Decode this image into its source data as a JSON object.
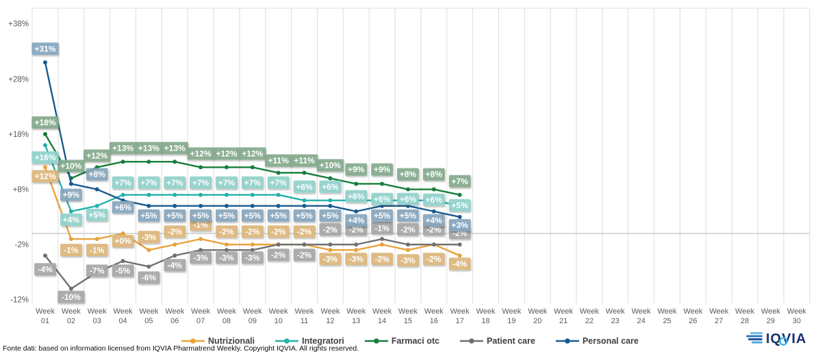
{
  "chart_data": {
    "type": "line",
    "title": "",
    "x_label_prefix": "Week",
    "weeks": [
      "01",
      "02",
      "03",
      "04",
      "05",
      "06",
      "07",
      "08",
      "09",
      "10",
      "11",
      "12",
      "13",
      "14",
      "15",
      "16",
      "17",
      "18",
      "19",
      "20",
      "21",
      "22",
      "23",
      "24",
      "25",
      "26",
      "27",
      "28",
      "29",
      "30"
    ],
    "y_ticks": [
      "+38%",
      "+28%",
      "+18%",
      "+8%",
      "-2%",
      "-12%"
    ],
    "y_tick_values": [
      38,
      28,
      18,
      8,
      -2,
      -12
    ],
    "ylim": [
      -13,
      41
    ],
    "grid": "vertical-weekly, zero-axis-line",
    "legend_position": "bottom",
    "data_weeks_with_values": 17,
    "series": [
      {
        "name": "Nutrizionali",
        "color": "#E9A23B",
        "label_bg": "#DDB97E",
        "values": [
          12,
          -1,
          -1,
          0,
          -3,
          -2,
          -1,
          -2,
          -2,
          -2,
          -2,
          -3,
          -3,
          -2,
          -3,
          -2,
          -4
        ],
        "labels": [
          "+12%",
          "-1%",
          "-1%",
          "+0%",
          "-3%",
          "-2%",
          "-1%",
          "-2%",
          "-2%",
          "-2%",
          "-2%",
          "-3%",
          "-3%",
          "-2%",
          "-3%",
          "-2%",
          "-4%"
        ],
        "label_dy": [
          13,
          16,
          16,
          11,
          -19,
          -19,
          -21,
          -19,
          -19,
          -19,
          -19,
          13,
          13,
          21,
          15,
          21,
          12
        ]
      },
      {
        "name": "Integratori",
        "color": "#22B1A8",
        "label_bg": "#92D2CC",
        "values": [
          16,
          4,
          5,
          7,
          7,
          7,
          7,
          7,
          7,
          7,
          6,
          6,
          6,
          6,
          6,
          6,
          5
        ],
        "labels": [
          "+16%",
          "+4%",
          "+5%",
          "+7%",
          "+7%",
          "+7%",
          "+7%",
          "+7%",
          "+7%",
          "+7%",
          "+6%",
          "+6%",
          "+6%",
          "+6%",
          "+6%",
          "+6%",
          "+5%"
        ],
        "label_dy": [
          18,
          12,
          13,
          -18,
          -18,
          -18,
          -18,
          -18,
          -18,
          -18,
          -20,
          -20,
          -6,
          -2,
          -2,
          -1,
          -1
        ]
      },
      {
        "name": "Farmaci otc",
        "color": "#177D3B",
        "label_bg": "#85AB8E",
        "values": [
          18,
          10,
          12,
          13,
          13,
          13,
          12,
          12,
          12,
          11,
          11,
          10,
          9,
          9,
          8,
          8,
          7
        ],
        "labels": [
          "+18%",
          "+10%",
          "+12%",
          "+13%",
          "+13%",
          "+13%",
          "+12%",
          "+12%",
          "+12%",
          "+11%",
          "+11%",
          "+10%",
          "+9%",
          "+9%",
          "+8%",
          "+8%",
          "+7%"
        ],
        "label_dy": [
          -17,
          -18,
          -17,
          -20,
          -20,
          -20,
          -20,
          -20,
          -20,
          -18,
          -18,
          -19,
          -21,
          -21,
          -22,
          -22,
          -20
        ]
      },
      {
        "name": "Patient care",
        "color": "#707070",
        "label_bg": "#A8A8A8",
        "values": [
          -4,
          -10,
          -7,
          -5,
          -6,
          -4,
          -3,
          -3,
          -3,
          -2,
          -2,
          -2,
          -2,
          -1,
          -2,
          -2,
          -2
        ],
        "labels": [
          "-4%",
          "-10%",
          "-7%",
          "-5%",
          "-6%",
          "-4%",
          "-3%",
          "-3%",
          "-3%",
          "-2%",
          "-2%",
          "-2%",
          "-2%",
          "-1%",
          "-2%",
          "-2%",
          "-2%"
        ],
        "label_dy": [
          20,
          12,
          -2,
          14,
          16,
          14,
          11,
          11,
          11,
          15,
          15,
          -22,
          -22,
          -16,
          -22,
          -22,
          -17
        ]
      },
      {
        "name": "Personal care",
        "color": "#1A5A8F",
        "label_bg": "#88A7BF",
        "values": [
          31,
          9,
          8,
          6,
          5,
          5,
          5,
          5,
          5,
          5,
          5,
          5,
          4,
          5,
          5,
          4,
          3
        ],
        "labels": [
          "+31%",
          "+9%",
          "+8%",
          "+6%",
          "+5%",
          "+5%",
          "+5%",
          "+5%",
          "+5%",
          "+5%",
          "+5%",
          "+5%",
          "+4%",
          "+5%",
          "+5%",
          "+4%",
          "+3%"
        ],
        "label_dy": [
          -20,
          16,
          -22,
          10,
          14,
          14,
          14,
          14,
          14,
          14,
          14,
          14,
          13,
          14,
          14,
          13,
          12
        ]
      }
    ]
  },
  "axis_colors": {
    "grid": "#DCDCDC",
    "zero_line": "#C1C1C1",
    "tick_text": "#595959"
  },
  "footer": {
    "text": "Fonte dati: based on information licensed from IQVIA Pharmatrend Weekly. Copyright IQVIA. All rights reserved."
  },
  "logo": {
    "text": "IQVIA",
    "navy": "#19306A",
    "cyan": "#39B6E8"
  }
}
